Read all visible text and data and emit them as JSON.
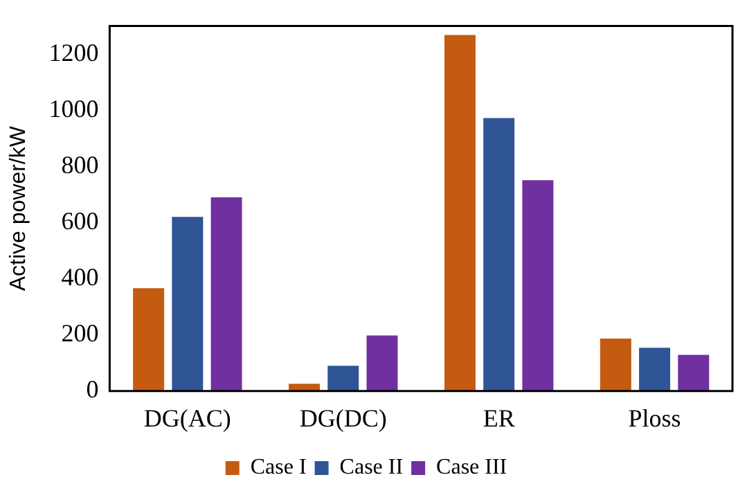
{
  "chart_data": {
    "type": "bar",
    "ylabel": "Active power/kW",
    "categories": [
      "DG(AC)",
      "DG(DC)",
      "ER",
      "Ploss"
    ],
    "series": [
      {
        "name": "Case I",
        "color": "#c55a11",
        "values": [
          366,
          26,
          1268,
          187
        ]
      },
      {
        "name": "Case II",
        "color": "#2f5597",
        "values": [
          620,
          90,
          972,
          154
        ]
      },
      {
        "name": "Case III",
        "color": "#7030a0",
        "values": [
          690,
          198,
          751,
          129
        ]
      }
    ],
    "ylim": [
      0,
      1300
    ],
    "yticks": [
      0,
      200,
      400,
      600,
      800,
      1000,
      1200
    ],
    "grid": false,
    "legend": "bottom"
  }
}
